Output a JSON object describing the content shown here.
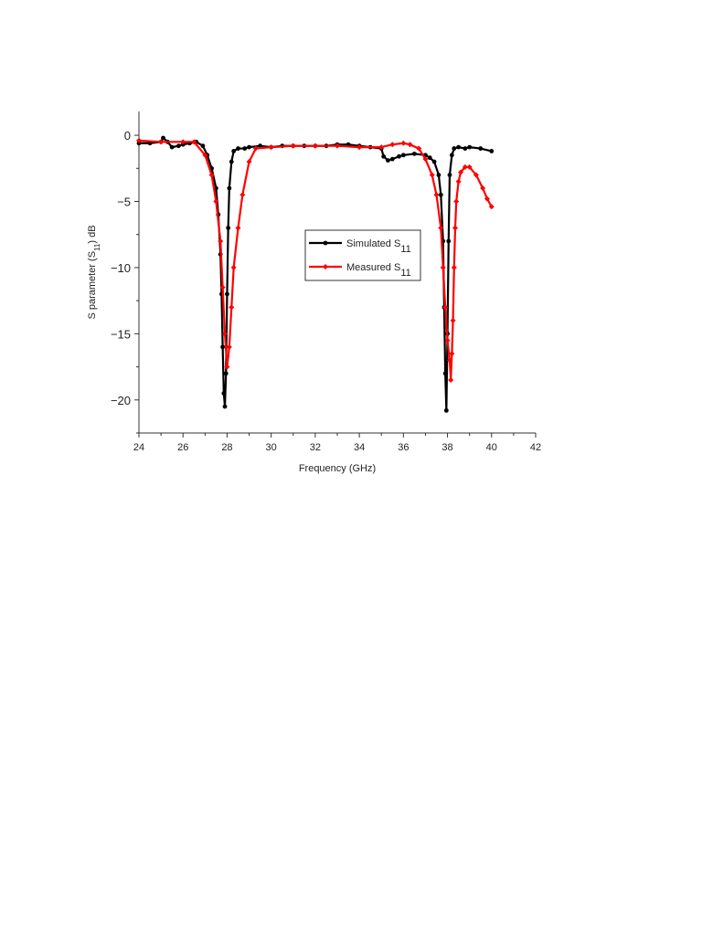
{
  "chart_data": {
    "type": "line",
    "title": "",
    "xlabel": "Frequency (GHz)",
    "ylabel": "S parameter (S",
    "ylabel_sub": "11",
    "ylabel_suffix": ") dB",
    "xlim": [
      24,
      42
    ],
    "ylim": [
      -22.5,
      1.8
    ],
    "xticks": [
      24,
      26,
      28,
      30,
      32,
      34,
      36,
      38,
      40,
      42
    ],
    "yticks": [
      0,
      -5,
      -10,
      -15,
      -20
    ],
    "ytick_labels": [
      "0",
      "−5",
      "−10",
      "−15",
      "−20"
    ],
    "grid": false,
    "legend_position": "center-right",
    "series": [
      {
        "name": "Simulated S",
        "name_sub": "11",
        "color": "#000000",
        "marker": "circle",
        "x": [
          24.0,
          24.5,
          25.0,
          25.1,
          25.3,
          25.5,
          25.8,
          26.0,
          26.3,
          26.6,
          26.9,
          27.1,
          27.3,
          27.5,
          27.6,
          27.7,
          27.75,
          27.8,
          27.85,
          27.9,
          27.95,
          28.0,
          28.05,
          28.1,
          28.2,
          28.3,
          28.5,
          28.8,
          29.0,
          29.5,
          30.0,
          30.5,
          31.0,
          31.5,
          32.0,
          32.5,
          33.0,
          33.5,
          34.0,
          34.5,
          35.0,
          35.1,
          35.3,
          35.5,
          35.8,
          36.0,
          36.5,
          37.0,
          37.2,
          37.4,
          37.6,
          37.7,
          37.8,
          37.85,
          37.9,
          37.95,
          38.0,
          38.05,
          38.1,
          38.2,
          38.3,
          38.5,
          38.8,
          39.0,
          39.5,
          40.0
        ],
        "y": [
          -0.6,
          -0.6,
          -0.5,
          -0.2,
          -0.5,
          -0.9,
          -0.8,
          -0.7,
          -0.6,
          -0.5,
          -0.8,
          -1.5,
          -2.5,
          -4.0,
          -6.0,
          -9.0,
          -12.0,
          -16.0,
          -19.5,
          -20.5,
          -18.0,
          -12.0,
          -7.0,
          -4.0,
          -2.0,
          -1.2,
          -1.0,
          -1.0,
          -0.9,
          -0.8,
          -0.9,
          -0.8,
          -0.8,
          -0.8,
          -0.8,
          -0.8,
          -0.7,
          -0.7,
          -0.8,
          -0.9,
          -1.0,
          -1.6,
          -1.9,
          -1.8,
          -1.6,
          -1.5,
          -1.4,
          -1.5,
          -1.7,
          -2.0,
          -3.0,
          -4.5,
          -8.0,
          -13.0,
          -18.0,
          -20.8,
          -15.0,
          -8.0,
          -3.0,
          -1.5,
          -1.0,
          -0.9,
          -1.0,
          -0.9,
          -1.0,
          -1.2
        ]
      },
      {
        "name": "Measured S",
        "name_sub": "11",
        "color": "#ff0000",
        "marker": "diamond",
        "x": [
          24.0,
          25.0,
          26.0,
          26.5,
          27.0,
          27.3,
          27.5,
          27.7,
          27.8,
          27.9,
          28.0,
          28.1,
          28.2,
          28.3,
          28.5,
          28.7,
          29.0,
          29.3,
          30.0,
          31.0,
          32.0,
          33.0,
          34.0,
          35.0,
          35.5,
          36.0,
          36.3,
          36.7,
          37.0,
          37.3,
          37.5,
          37.7,
          37.8,
          37.9,
          38.0,
          38.1,
          38.15,
          38.2,
          38.25,
          38.3,
          38.35,
          38.4,
          38.5,
          38.6,
          38.8,
          39.0,
          39.3,
          39.6,
          39.8,
          40.0
        ],
        "y": [
          -0.4,
          -0.5,
          -0.5,
          -0.5,
          -1.5,
          -3.0,
          -5.0,
          -8.0,
          -11.5,
          -15.0,
          -17.5,
          -16.0,
          -13.0,
          -10.0,
          -7.0,
          -4.5,
          -2.0,
          -1.0,
          -0.9,
          -0.8,
          -0.8,
          -0.8,
          -0.9,
          -0.9,
          -0.7,
          -0.6,
          -0.7,
          -1.0,
          -1.8,
          -3.0,
          -4.5,
          -7.0,
          -10.0,
          -13.0,
          -15.5,
          -17.0,
          -18.5,
          -16.5,
          -14.0,
          -10.0,
          -7.0,
          -5.0,
          -3.5,
          -2.8,
          -2.4,
          -2.4,
          -3.0,
          -4.0,
          -4.8,
          -5.4
        ]
      }
    ]
  }
}
